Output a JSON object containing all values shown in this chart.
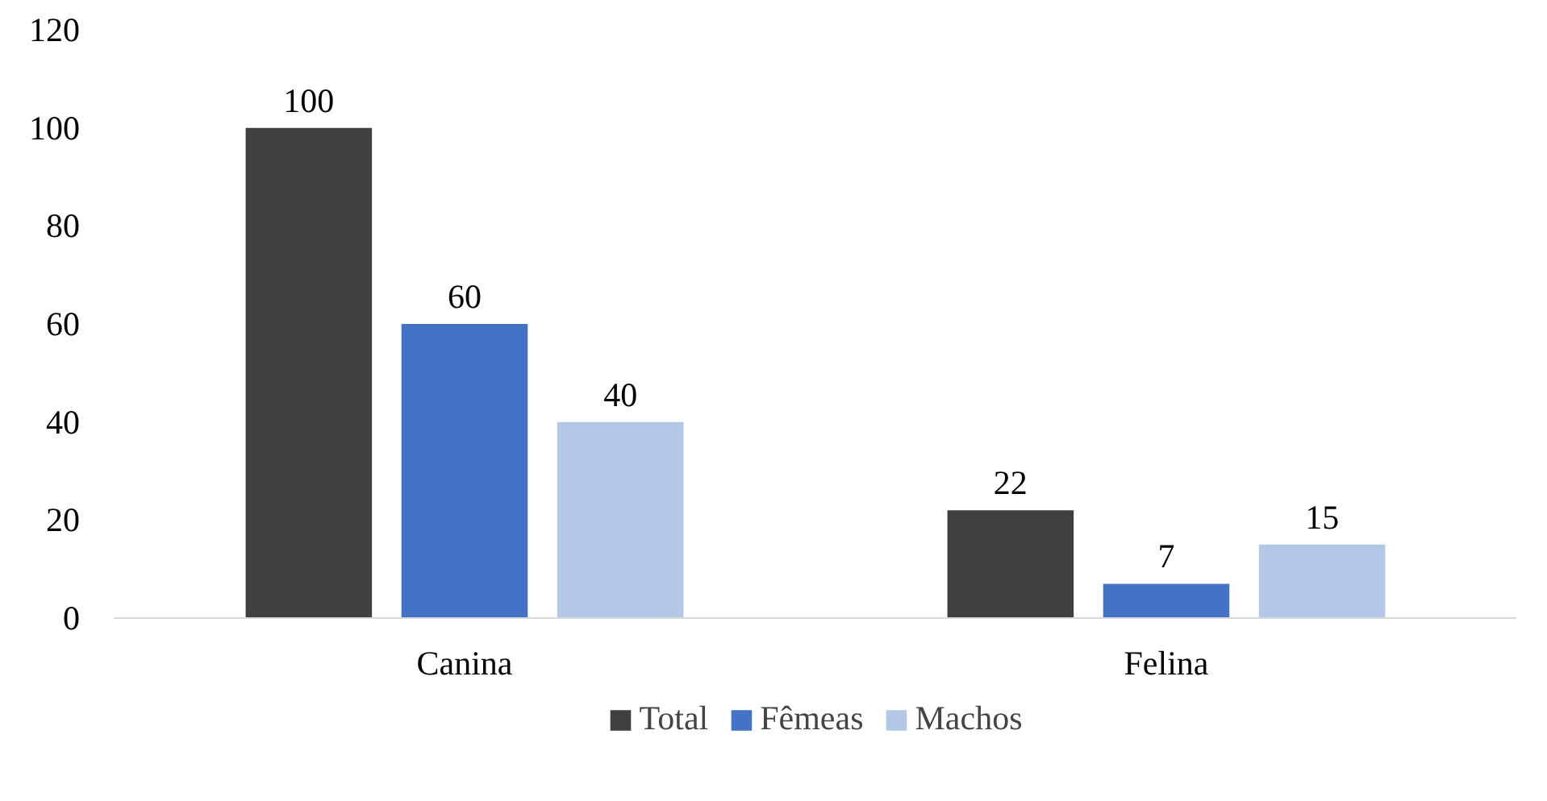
{
  "chart_data": {
    "type": "bar",
    "categories": [
      "Canina",
      "Felina"
    ],
    "series": [
      {
        "name": "Total",
        "color": "#404040",
        "values": [
          100,
          22
        ]
      },
      {
        "name": "Fêmeas",
        "color": "#4472c4",
        "values": [
          60,
          7
        ]
      },
      {
        "name": "Machos",
        "color": "#b4c7e7",
        "values": [
          40,
          15
        ]
      }
    ],
    "ylim": [
      0,
      120
    ],
    "yticks": [
      0,
      20,
      40,
      60,
      80,
      100,
      120
    ],
    "grid": false,
    "legend": "bottom",
    "data_labels": true
  }
}
